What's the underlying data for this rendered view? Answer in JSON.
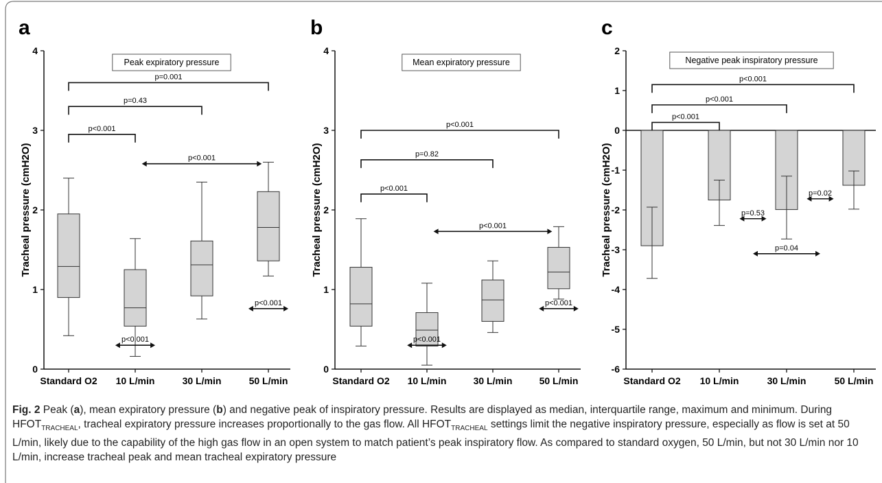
{
  "panel_labels": [
    "a",
    "b",
    "c"
  ],
  "chart_data": [
    {
      "type": "box",
      "panel": "a",
      "title": "Peak expiratory pressure",
      "ylabel": "Tracheal pressure (cmH2O)",
      "ylim": [
        0,
        4
      ],
      "yticks": [
        "0",
        "1",
        "2",
        "3",
        "4"
      ],
      "categories": [
        "Standard O2",
        "10 L/min",
        "30 L/min",
        "50 L/min"
      ],
      "boxes": [
        {
          "min": 0.42,
          "q1": 0.9,
          "median": 1.29,
          "q3": 1.95,
          "max": 2.4
        },
        {
          "min": 0.16,
          "q1": 0.54,
          "median": 0.77,
          "q3": 1.25,
          "max": 1.64
        },
        {
          "min": 0.63,
          "q1": 0.92,
          "median": 1.31,
          "q3": 1.61,
          "max": 2.35
        },
        {
          "min": 1.17,
          "q1": 1.36,
          "median": 1.78,
          "q3": 2.23,
          "max": 2.6
        }
      ],
      "brackets": [
        {
          "from": 0,
          "to": 3,
          "y": 3.6,
          "label": "p=0.001"
        },
        {
          "from": 0,
          "to": 2,
          "y": 3.3,
          "label": "p=0.43"
        },
        {
          "from": 0,
          "to": 1,
          "y": 2.95,
          "label": "p<0.001"
        }
      ],
      "arrows": [
        {
          "x1": 1.1,
          "x2": 2.9,
          "y": 2.58,
          "label": "p<0.001"
        },
        {
          "x1": 0.7,
          "x2": 1.3,
          "y": 0.3,
          "label": "p<0.001"
        },
        {
          "x1": 2.7,
          "x2": 3.3,
          "y": 0.76,
          "label": "p<0.001"
        }
      ]
    },
    {
      "type": "box",
      "panel": "b",
      "title": "Mean expiratory pressure",
      "ylabel": "Tracheal pressure (cmH2O)",
      "ylim": [
        0,
        4
      ],
      "yticks": [
        "0",
        "1",
        "2",
        "3",
        "4"
      ],
      "categories": [
        "Standard O2",
        "10 L/min",
        "30 L/min",
        "50 L/min"
      ],
      "boxes": [
        {
          "min": 0.29,
          "q1": 0.54,
          "median": 0.82,
          "q3": 1.28,
          "max": 1.89
        },
        {
          "min": 0.05,
          "q1": 0.29,
          "median": 0.49,
          "q3": 0.71,
          "max": 1.08
        },
        {
          "min": 0.46,
          "q1": 0.6,
          "median": 0.87,
          "q3": 1.12,
          "max": 1.36
        },
        {
          "min": 0.88,
          "q1": 1.01,
          "median": 1.22,
          "q3": 1.53,
          "max": 1.79
        }
      ],
      "brackets": [
        {
          "from": 0,
          "to": 3,
          "y": 3.0,
          "label": "p<0.001"
        },
        {
          "from": 0,
          "to": 2,
          "y": 2.63,
          "label": "p=0.82"
        },
        {
          "from": 0,
          "to": 1,
          "y": 2.2,
          "label": "p<0.001"
        }
      ],
      "arrows": [
        {
          "x1": 1.1,
          "x2": 2.9,
          "y": 1.73,
          "label": "p<0.001"
        },
        {
          "x1": 0.7,
          "x2": 1.3,
          "y": 0.3,
          "label": "p<0.001"
        },
        {
          "x1": 2.7,
          "x2": 3.3,
          "y": 0.76,
          "label": "p<0.001"
        }
      ]
    },
    {
      "type": "bar",
      "panel": "c",
      "title": "Negative peak inspiratory pressure",
      "ylabel": "Tracheal pressure (cmH2O)",
      "ylim": [
        -6,
        2
      ],
      "yticks": [
        "-6",
        "-5",
        "-4",
        "-3",
        "-2",
        "-1",
        "0",
        "1",
        "2"
      ],
      "categories": [
        "Standard O2",
        "10 L/min",
        "30 L/min",
        "50 L/min"
      ],
      "bars": [
        {
          "value": -2.9,
          "err_low": -3.72,
          "err_high": -1.93
        },
        {
          "value": -1.75,
          "err_low": -2.39,
          "err_high": -1.25
        },
        {
          "value": -1.99,
          "err_low": -2.73,
          "err_high": -1.15
        },
        {
          "value": -1.38,
          "err_low": -1.98,
          "err_high": -1.02
        }
      ],
      "brackets": [
        {
          "from": 0,
          "to": 3,
          "y": 1.15,
          "label": "p<0.001"
        },
        {
          "from": 0,
          "to": 2,
          "y": 0.64,
          "label": "p<0.001"
        },
        {
          "from": 0,
          "to": 1,
          "y": 0.2,
          "label": "p<0.001"
        }
      ],
      "arrows": [
        {
          "x1": 1.3,
          "x2": 1.7,
          "y": -2.22,
          "label": "p=0.53"
        },
        {
          "x1": 2.3,
          "x2": 2.7,
          "y": -1.72,
          "label": "p=0.02"
        },
        {
          "x1": 1.5,
          "x2": 2.5,
          "y": -3.1,
          "label": "p=0.04"
        }
      ]
    }
  ],
  "caption": {
    "fig_label": "Fig. 2",
    "part1": " Peak (",
    "a": "a",
    "part2": "), mean expiratory pressure (",
    "b": "b",
    "part3": ") and negative peak of inspiratory pressure. Results are displayed as median, interquartile range, maximum and minimum. During HFOT",
    "sub1": "TRACHEAL",
    "part4": ", tracheal expiratory pressure increases proportionally to the gas flow. All HFOT",
    "sub2": "TRACHEAL",
    "part5": " settings limit the negative inspiratory pressure, especially as flow is set at 50 L/min, likely due to the capability of the high gas flow in an open system to match patient’s peak inspiratory flow. As compared to standard oxygen, 50 L/min, but not 30 L/min nor 10 L/min, increase tracheal peak and mean tracheal expiratory pressure"
  }
}
